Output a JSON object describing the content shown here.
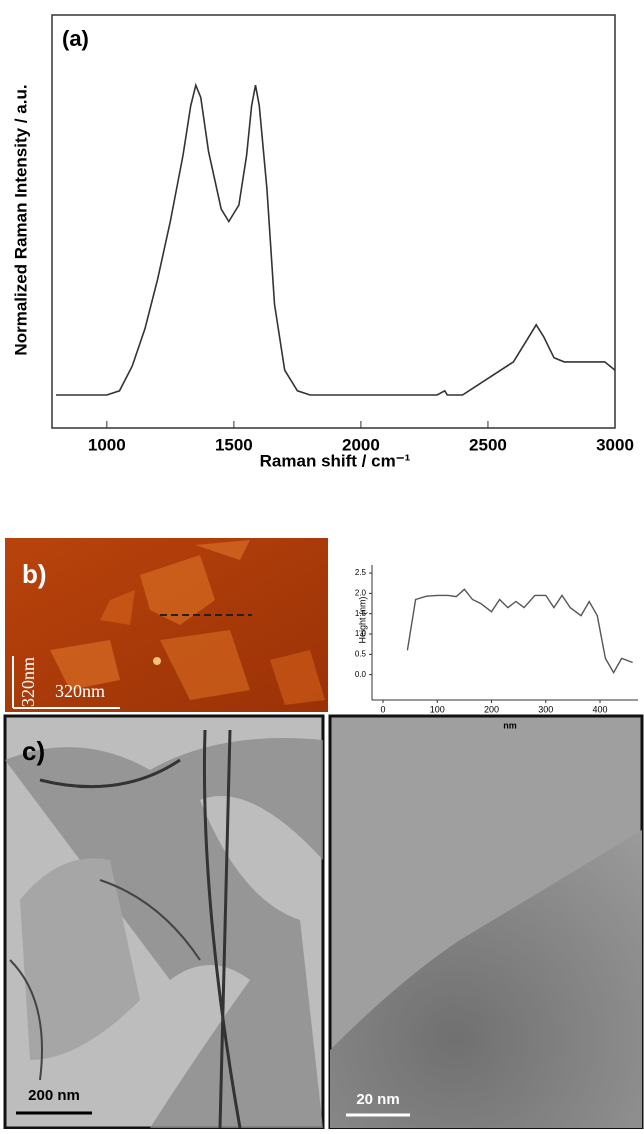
{
  "chart_data": [
    {
      "type": "line",
      "panel_label": "(a)",
      "xlabel": "Raman shift / cm⁻¹",
      "ylabel": "Normalized Raman Intensity / a.u.",
      "color": "#333333",
      "x": [
        800,
        1000,
        1050,
        1100,
        1150,
        1200,
        1250,
        1300,
        1330,
        1350,
        1370,
        1400,
        1450,
        1480,
        1520,
        1550,
        1570,
        1585,
        1600,
        1630,
        1660,
        1700,
        1750,
        1800,
        2000,
        2300,
        2330,
        2340,
        2400,
        2450,
        2500,
        2600,
        2650,
        2690,
        2720,
        2760,
        2800,
        2900,
        2960,
        3000
      ],
      "values": [
        0.08,
        0.08,
        0.09,
        0.15,
        0.24,
        0.36,
        0.5,
        0.66,
        0.78,
        0.83,
        0.8,
        0.67,
        0.53,
        0.5,
        0.54,
        0.66,
        0.78,
        0.83,
        0.78,
        0.58,
        0.3,
        0.14,
        0.09,
        0.08,
        0.08,
        0.08,
        0.09,
        0.08,
        0.08,
        0.1,
        0.12,
        0.16,
        0.21,
        0.25,
        0.22,
        0.17,
        0.16,
        0.16,
        0.16,
        0.14
      ],
      "xlim": [
        800,
        3000
      ],
      "xticks": [
        1000,
        1500,
        2000,
        2500,
        3000
      ],
      "ylim": [
        0,
        1
      ]
    },
    {
      "type": "line",
      "xlabel": "nm",
      "ylabel": "Height (nm)",
      "color": "#555555",
      "x": [
        45,
        60,
        80,
        100,
        120,
        135,
        150,
        165,
        180,
        200,
        215,
        230,
        245,
        260,
        280,
        300,
        315,
        330,
        345,
        365,
        380,
        395,
        410,
        425,
        440,
        460
      ],
      "values": [
        0.6,
        1.85,
        1.93,
        1.95,
        1.95,
        1.92,
        2.1,
        1.85,
        1.75,
        1.55,
        1.85,
        1.65,
        1.8,
        1.65,
        1.95,
        1.95,
        1.65,
        1.95,
        1.65,
        1.45,
        1.8,
        1.45,
        0.4,
        0.05,
        0.4,
        0.3
      ],
      "xlim": [
        0,
        470
      ],
      "xticks": [
        0,
        100,
        200,
        300,
        400
      ],
      "ylim": [
        -0.5,
        2.6
      ],
      "yticks": [
        {
          "value": 0,
          "label": "0.0"
        },
        {
          "value": 0.5,
          "label": "0.5"
        },
        {
          "value": 1,
          "label": "1.0"
        },
        {
          "value": 1.5,
          "label": "1.5"
        },
        {
          "value": 2,
          "label": "2.0"
        },
        {
          "value": 2.5,
          "label": "2.5"
        }
      ]
    }
  ],
  "images": {
    "afm": {
      "label": "b)",
      "scale_y": "320nm",
      "scale_x": "320nm"
    },
    "tem": {
      "label": "c)",
      "scale_left": "200 nm",
      "scale_right": "20 nm"
    }
  }
}
